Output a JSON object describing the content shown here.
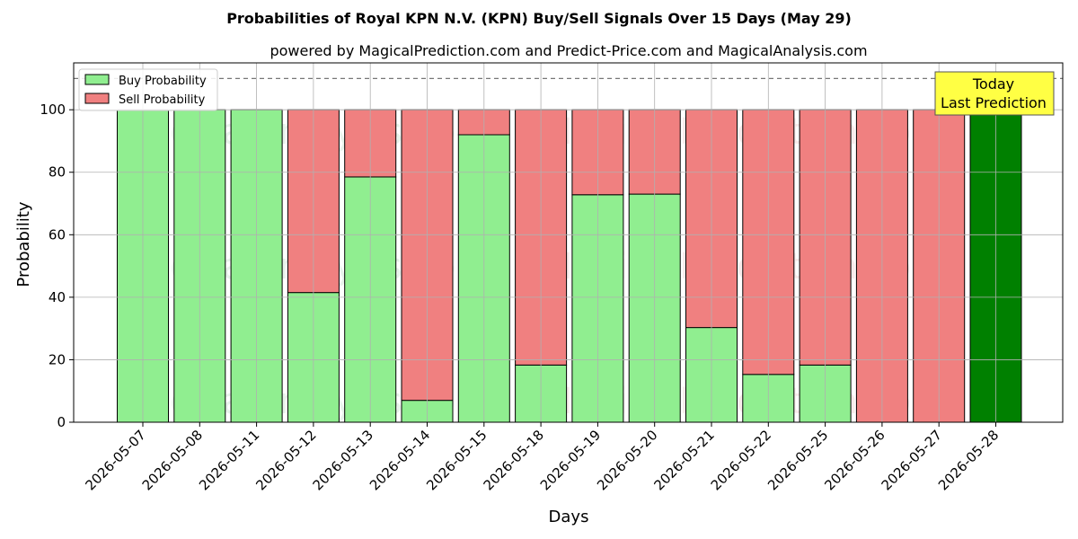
{
  "chart_data": {
    "type": "bar",
    "stacked": true,
    "title": "Probabilities of Royal KPN N.V. (KPN) Buy/Sell Signals Over 15 Days (May 29)",
    "subtitle": "powered by MagicalPrediction.com and Predict-Price.com and MagicalAnalysis.com",
    "xlabel": "Days",
    "ylabel": "Probability",
    "ylim": [
      0,
      115
    ],
    "yticks": [
      0,
      20,
      40,
      60,
      80,
      100
    ],
    "grid": true,
    "legend_position": "top-left",
    "reference_line": 110,
    "categories": [
      "2026-05-07",
      "2026-05-08",
      "2026-05-11",
      "2026-05-12",
      "2026-05-13",
      "2026-05-14",
      "2026-05-15",
      "2026-05-18",
      "2026-05-19",
      "2026-05-20",
      "2026-05-21",
      "2026-05-22",
      "2026-05-25",
      "2026-05-26",
      "2026-05-27",
      "2026-05-28"
    ],
    "series": [
      {
        "name": "Buy Probability",
        "color": "#90ee90",
        "values": [
          100,
          100,
          100,
          41.5,
          78.5,
          7,
          92,
          18.3,
          72.8,
          73,
          30.3,
          15.3,
          18.3,
          0,
          0,
          100
        ]
      },
      {
        "name": "Sell Probability",
        "color": "#f08080",
        "values": [
          0,
          0,
          0,
          58.5,
          21.5,
          93,
          8,
          81.7,
          27.2,
          27,
          69.7,
          84.7,
          81.7,
          100,
          100,
          0
        ]
      }
    ],
    "highlight": {
      "category": "2026-05-28",
      "color": "#008000",
      "label_lines": [
        "Today",
        "Last Prediction"
      ]
    },
    "watermarks": [
      "MagicalAnalysis.com",
      "MagicalPrediction.com"
    ]
  }
}
